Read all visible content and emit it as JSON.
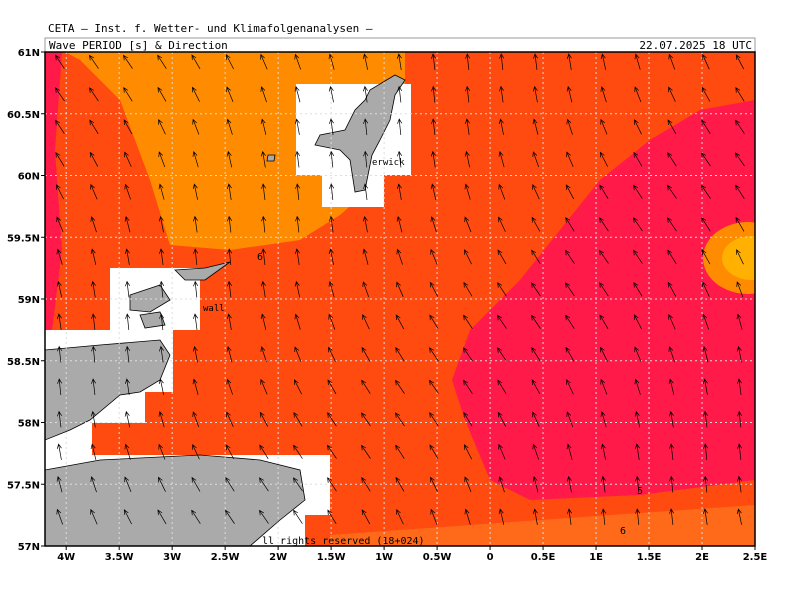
{
  "header": {
    "institute": "CETA — Inst. f. Wetter- und Klimafolgenanalysen —",
    "title": "Wave PERIOD [s] & Direction",
    "valid_time": "22.07.2025 18 UTC"
  },
  "map": {
    "lon_range": [
      -4.2,
      2.5
    ],
    "lat_range": [
      57,
      61
    ],
    "lon_ticks": [
      {
        "value": -4,
        "label": "4W"
      },
      {
        "value": -3.5,
        "label": "3.5W"
      },
      {
        "value": -3,
        "label": "3W"
      },
      {
        "value": -2.5,
        "label": "2.5W"
      },
      {
        "value": -2,
        "label": "2W"
      },
      {
        "value": -1.5,
        "label": "1.5W"
      },
      {
        "value": -1,
        "label": "1W"
      },
      {
        "value": -0.5,
        "label": "0.5W"
      },
      {
        "value": 0,
        "label": "0"
      },
      {
        "value": 0.5,
        "label": "0.5E"
      },
      {
        "value": 1,
        "label": "1E"
      },
      {
        "value": 1.5,
        "label": "1.5E"
      },
      {
        "value": 2,
        "label": "2E"
      },
      {
        "value": 2.5,
        "label": "2.5E"
      }
    ],
    "lat_ticks": [
      {
        "value": 57,
        "label": "57N"
      },
      {
        "value": 57.5,
        "label": "57.5N"
      },
      {
        "value": 58,
        "label": "58N"
      },
      {
        "value": 58.5,
        "label": "58.5N"
      },
      {
        "value": 59,
        "label": "59N"
      },
      {
        "value": 59.5,
        "label": "59.5N"
      },
      {
        "value": 60,
        "label": "60N"
      },
      {
        "value": 60.5,
        "label": "60.5N"
      },
      {
        "value": 61,
        "label": "61N"
      }
    ],
    "contour_labels": [
      "6",
      "5",
      "6"
    ],
    "places": [
      "erwick",
      "wall"
    ],
    "copyright": "ll rights reserved (18+024)"
  }
}
